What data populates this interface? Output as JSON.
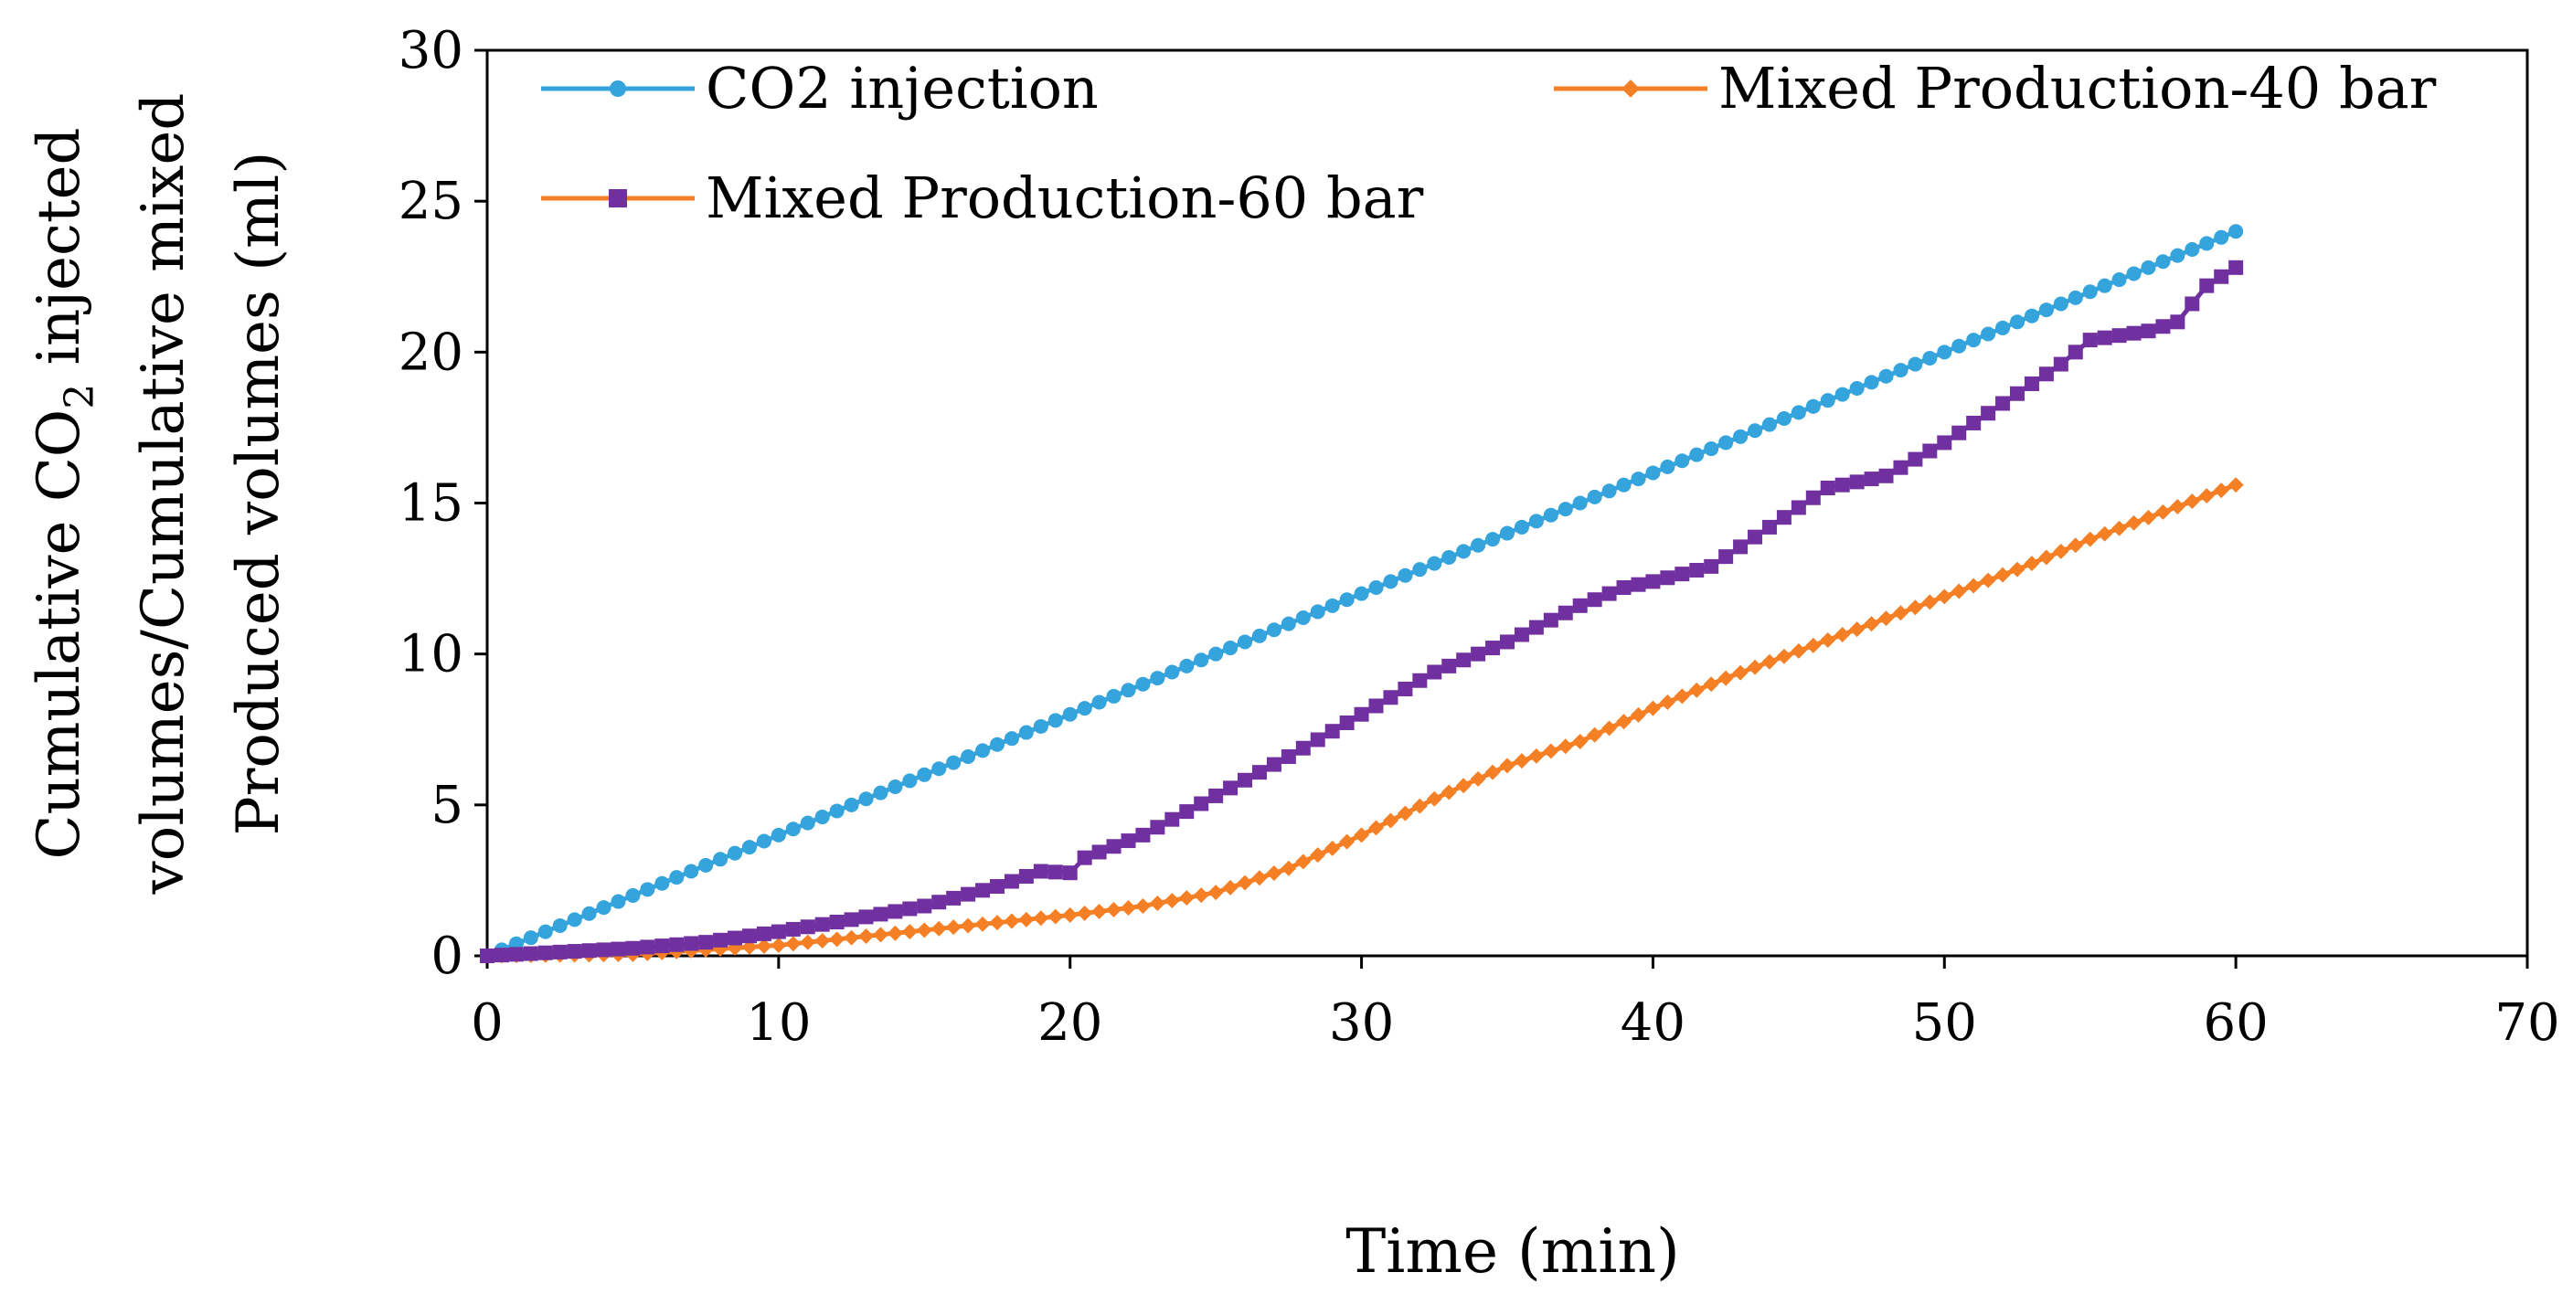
{
  "chart_data": {
    "type": "line",
    "title": "",
    "xlabel": "Time (min)",
    "ylabel": {
      "line1_pre": "Cumulative CO",
      "line1_sub": "2",
      "line1_post": " injected",
      "line2": "volumes/Cumulative mixed",
      "line3": "Produced volumes (ml)"
    },
    "xlim": [
      0,
      70
    ],
    "ylim": [
      0,
      30
    ],
    "xticks": [
      0,
      10,
      20,
      30,
      40,
      50,
      60,
      70
    ],
    "yticks": [
      0,
      5,
      10,
      15,
      20,
      25,
      30
    ],
    "grid": false,
    "legend": "top",
    "series": [
      {
        "name": "CO2 injection",
        "color": "#35A4DC",
        "marker": "circle",
        "points": [
          [
            0,
            0
          ],
          [
            60,
            24
          ]
        ]
      },
      {
        "name": "Mixed Production-40 bar",
        "color": "#F57F24",
        "marker": "diamond",
        "points": [
          [
            0,
            0
          ],
          [
            5,
            0.05
          ],
          [
            10,
            0.35
          ],
          [
            15,
            0.85
          ],
          [
            20,
            1.35
          ],
          [
            22.5,
            1.65
          ],
          [
            25,
            2.1
          ],
          [
            27.5,
            2.9
          ],
          [
            30,
            4.0
          ],
          [
            32.5,
            5.2
          ],
          [
            35,
            6.3
          ],
          [
            37.5,
            7.1
          ],
          [
            40,
            8.2
          ],
          [
            42.5,
            9.2
          ],
          [
            45,
            10.1
          ],
          [
            47.5,
            11.0
          ],
          [
            50,
            11.9
          ],
          [
            52.5,
            12.8
          ],
          [
            55,
            13.8
          ],
          [
            57.5,
            14.7
          ],
          [
            60,
            15.6
          ]
        ]
      },
      {
        "name": "Mixed Production-60 bar",
        "color": "#7030A0",
        "marker": "square",
        "points": [
          [
            0,
            0
          ],
          [
            5,
            0.25
          ],
          [
            7.5,
            0.45
          ],
          [
            10,
            0.8
          ],
          [
            12.5,
            1.2
          ],
          [
            15,
            1.65
          ],
          [
            17.5,
            2.3
          ],
          [
            19,
            2.8
          ],
          [
            20,
            2.75
          ],
          [
            20.5,
            3.25
          ],
          [
            22.5,
            4.0
          ],
          [
            25,
            5.3
          ],
          [
            27.5,
            6.6
          ],
          [
            30,
            8.0
          ],
          [
            32.5,
            9.4
          ],
          [
            35,
            10.4
          ],
          [
            37.5,
            11.6
          ],
          [
            39,
            12.2
          ],
          [
            40,
            12.4
          ],
          [
            42,
            12.9
          ],
          [
            44,
            14.2
          ],
          [
            46,
            15.5
          ],
          [
            48,
            15.9
          ],
          [
            50,
            17.0
          ],
          [
            52,
            18.3
          ],
          [
            54,
            19.6
          ],
          [
            55,
            20.4
          ],
          [
            57,
            20.7
          ],
          [
            58,
            21.0
          ],
          [
            59,
            22.2
          ],
          [
            60,
            22.8
          ]
        ]
      }
    ]
  }
}
